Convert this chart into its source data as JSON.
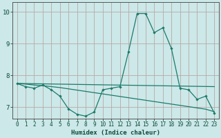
{
  "xlabel": "Humidex (Indice chaleur)",
  "background_color": "#cce8e8",
  "grid_color": "#b8a8a8",
  "line_color": "#1a7a6a",
  "xlim": [
    -0.5,
    23.5
  ],
  "ylim": [
    6.65,
    10.3
  ],
  "yticks": [
    7,
    8,
    9,
    10
  ],
  "xticks": [
    0,
    1,
    2,
    3,
    4,
    5,
    6,
    7,
    8,
    9,
    10,
    11,
    12,
    13,
    14,
    15,
    16,
    17,
    18,
    19,
    20,
    21,
    22,
    23
  ],
  "series1_x": [
    0,
    1,
    2,
    3,
    4,
    5,
    6,
    7,
    8,
    9,
    10,
    11,
    12,
    13,
    14,
    15,
    16,
    17,
    18,
    19,
    20,
    21,
    22,
    23
  ],
  "series1_y": [
    7.75,
    7.65,
    7.6,
    7.7,
    7.55,
    7.35,
    6.95,
    6.78,
    6.72,
    6.85,
    7.55,
    7.6,
    7.65,
    8.75,
    9.95,
    9.95,
    9.35,
    9.5,
    8.85,
    7.6,
    7.55,
    7.25,
    7.35,
    6.82
  ],
  "series2_x": [
    0,
    1,
    2,
    3,
    4,
    5,
    6,
    7,
    8,
    9,
    10,
    11,
    12,
    13,
    14,
    15,
    16,
    17,
    18,
    19,
    20,
    21,
    22,
    23
  ],
  "series2_y": [
    7.75,
    7.73,
    7.7,
    7.68,
    7.65,
    7.62,
    7.58,
    7.54,
    7.5,
    7.46,
    7.42,
    7.38,
    7.34,
    7.3,
    7.26,
    7.22,
    7.18,
    7.14,
    7.1,
    7.06,
    7.02,
    6.98,
    6.94,
    6.86
  ],
  "series3_x": [
    0,
    23
  ],
  "series3_y": [
    7.75,
    7.65
  ]
}
